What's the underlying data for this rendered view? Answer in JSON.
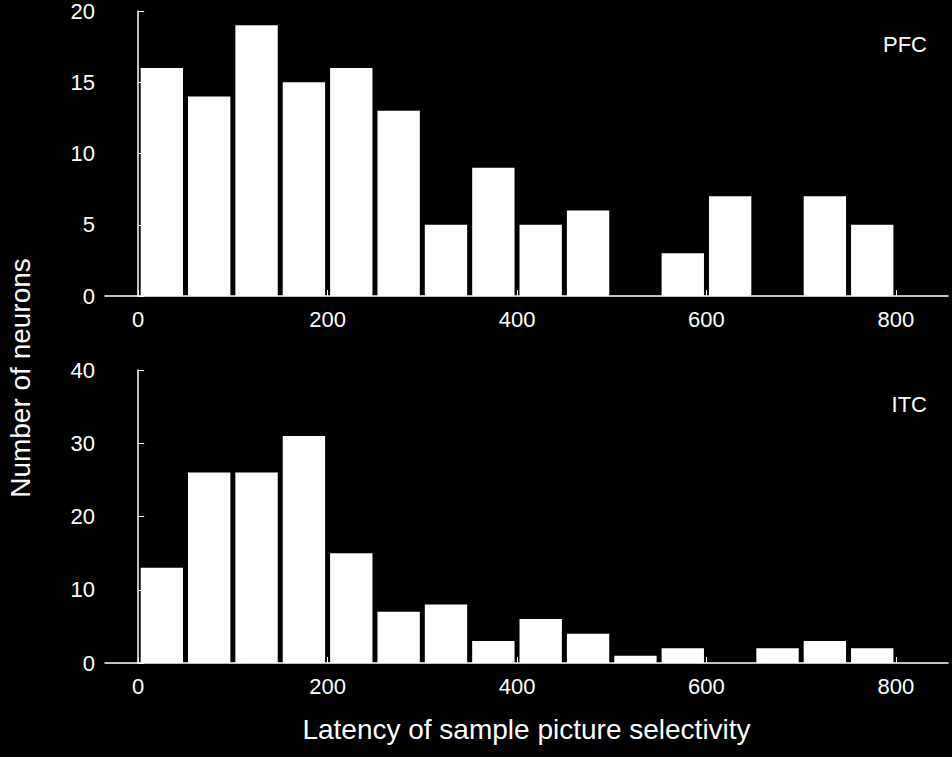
{
  "chart_data": [
    {
      "type": "histogram",
      "title": "PFC",
      "ylabel": "Number of neurons",
      "bins": [
        0,
        50,
        100,
        150,
        200,
        250,
        300,
        350,
        400,
        450,
        500,
        550,
        600,
        650,
        700,
        750,
        800
      ],
      "counts": [
        16,
        14,
        19,
        15,
        16,
        13,
        5,
        9,
        5,
        6,
        0,
        3,
        7,
        0,
        7,
        5
      ],
      "color": "#ffffff",
      "xlim": [
        -35,
        855
      ],
      "xticks": [
        0,
        200,
        400,
        600,
        800
      ],
      "ylim": [
        0,
        20
      ],
      "yticks": [
        0,
        5,
        10,
        15,
        20
      ],
      "grid": false
    },
    {
      "type": "histogram",
      "title": "ITC",
      "xlabel": "Latency of sample picture selectivity",
      "bins": [
        0,
        50,
        100,
        150,
        200,
        250,
        300,
        350,
        400,
        450,
        500,
        550,
        600,
        650,
        700,
        750,
        800
      ],
      "counts": [
        13,
        26,
        26,
        31,
        15,
        7,
        8,
        3,
        6,
        4,
        1,
        2,
        0,
        2,
        3,
        2
      ],
      "color": "#ffffff",
      "xlim": [
        -35,
        855
      ],
      "xticks": [
        0,
        200,
        400,
        600,
        800
      ],
      "ylim": [
        0,
        40
      ],
      "yticks": [
        0,
        10,
        20,
        30,
        40
      ],
      "grid": false
    }
  ]
}
